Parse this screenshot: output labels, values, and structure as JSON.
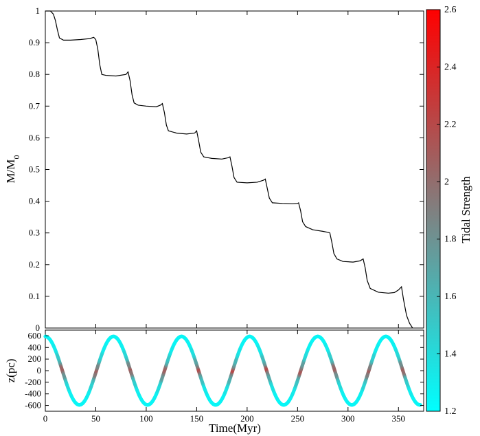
{
  "chart_data": [
    {
      "type": "line",
      "xlim": [
        0,
        375
      ],
      "ylim": [
        0,
        1
      ],
      "ylabel": "M/M",
      "ylabel_subscript": "0",
      "yticks": [
        0,
        0.1,
        0.2,
        0.3,
        0.4,
        0.5,
        0.6,
        0.7,
        0.8,
        0.9,
        1
      ],
      "ytick_labels": [
        "0",
        "0.1",
        "0.2",
        "0.3",
        "0.4",
        "0.5",
        "0.6",
        "0.7",
        "0.8",
        "0.9",
        "1"
      ],
      "line_color": "#000000",
      "points": [
        [
          0,
          1.0
        ],
        [
          5,
          1.0
        ],
        [
          8,
          0.99
        ],
        [
          10,
          0.97
        ],
        [
          12,
          0.94
        ],
        [
          14,
          0.915
        ],
        [
          18,
          0.908
        ],
        [
          25,
          0.908
        ],
        [
          35,
          0.91
        ],
        [
          44,
          0.913
        ],
        [
          48,
          0.917
        ],
        [
          50,
          0.91
        ],
        [
          52,
          0.88
        ],
        [
          54,
          0.83
        ],
        [
          56,
          0.8
        ],
        [
          60,
          0.797
        ],
        [
          70,
          0.795
        ],
        [
          80,
          0.8
        ],
        [
          82,
          0.808
        ],
        [
          84,
          0.78
        ],
        [
          86,
          0.735
        ],
        [
          88,
          0.71
        ],
        [
          92,
          0.703
        ],
        [
          100,
          0.7
        ],
        [
          110,
          0.698
        ],
        [
          114,
          0.703
        ],
        [
          116,
          0.708
        ],
        [
          118,
          0.68
        ],
        [
          120,
          0.64
        ],
        [
          122,
          0.622
        ],
        [
          130,
          0.615
        ],
        [
          140,
          0.612
        ],
        [
          148,
          0.615
        ],
        [
          150,
          0.622
        ],
        [
          152,
          0.59
        ],
        [
          154,
          0.555
        ],
        [
          157,
          0.54
        ],
        [
          165,
          0.535
        ],
        [
          175,
          0.533
        ],
        [
          181,
          0.537
        ],
        [
          183,
          0.54
        ],
        [
          185,
          0.51
        ],
        [
          187,
          0.475
        ],
        [
          190,
          0.46
        ],
        [
          200,
          0.458
        ],
        [
          210,
          0.46
        ],
        [
          216,
          0.466
        ],
        [
          218,
          0.47
        ],
        [
          220,
          0.44
        ],
        [
          222,
          0.41
        ],
        [
          225,
          0.395
        ],
        [
          235,
          0.393
        ],
        [
          245,
          0.392
        ],
        [
          250,
          0.393
        ],
        [
          251,
          0.395
        ],
        [
          253,
          0.37
        ],
        [
          255,
          0.335
        ],
        [
          258,
          0.32
        ],
        [
          265,
          0.31
        ],
        [
          275,
          0.305
        ],
        [
          280,
          0.302
        ],
        [
          282,
          0.3
        ],
        [
          284,
          0.27
        ],
        [
          286,
          0.235
        ],
        [
          289,
          0.218
        ],
        [
          295,
          0.21
        ],
        [
          305,
          0.208
        ],
        [
          312,
          0.212
        ],
        [
          315,
          0.218
        ],
        [
          317,
          0.19
        ],
        [
          319,
          0.15
        ],
        [
          322,
          0.125
        ],
        [
          330,
          0.113
        ],
        [
          340,
          0.11
        ],
        [
          346,
          0.112
        ],
        [
          350,
          0.12
        ],
        [
          353,
          0.13
        ],
        [
          355,
          0.09
        ],
        [
          358,
          0.04
        ],
        [
          361,
          0.015
        ],
        [
          364,
          0
        ]
      ]
    },
    {
      "type": "scatter",
      "xlabel": "Time(Myr)",
      "ylabel": "z(pc)",
      "xlim": [
        0,
        375
      ],
      "ylim": [
        -700,
        700
      ],
      "xticks": [
        0,
        50,
        100,
        150,
        200,
        250,
        300,
        350
      ],
      "xtick_labels": [
        "0",
        "50",
        "100",
        "150",
        "200",
        "250",
        "300",
        "350"
      ],
      "yticks": [
        600,
        400,
        200,
        0,
        -200,
        -400,
        -600
      ],
      "ytick_labels": [
        "600",
        "400",
        "200",
        "0",
        "-200",
        "-400",
        "-600"
      ],
      "series_function": "z = 590 * cos(2*pi*t/67.5), t from 0 to 372 Myr",
      "amplitude_pc": 590,
      "period_myr": 67.5,
      "color_encoding": "tidal strength; highest (red) near z = 0 crossings, lowest (cyan) near extremes"
    }
  ],
  "colorbar": {
    "label": "Tidal Strength",
    "range": [
      1.2,
      2.6
    ],
    "ticks": [
      "1.2",
      "1.4",
      "1.6",
      "1.8",
      "2",
      "2.2",
      "2.4",
      "2.6"
    ],
    "colors": {
      "low": "#00ffff",
      "mid": "#808080",
      "high": "#ff0000"
    }
  }
}
